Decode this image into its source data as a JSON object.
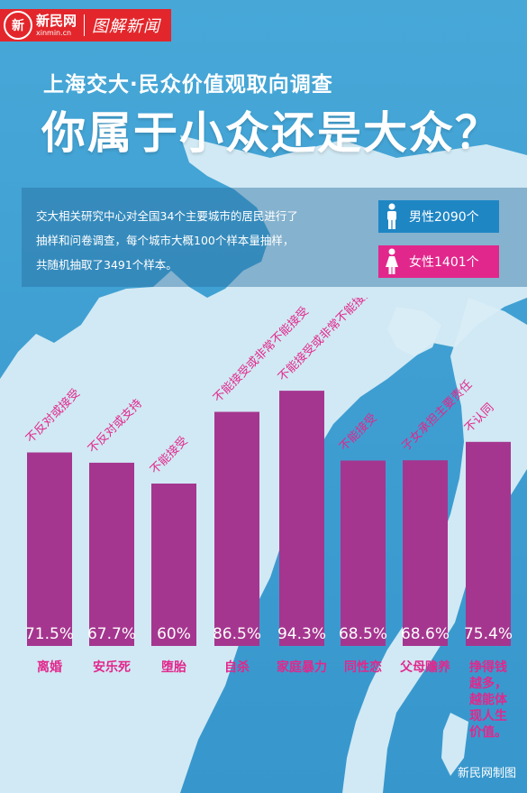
{
  "header": {
    "logo_cn": "新民网",
    "logo_en": "xinmin.cn",
    "logo_caption": "图解新闻",
    "subtitle": "上海交大·民众价值观取向调查",
    "title": "你属于小众还是大众？"
  },
  "info": {
    "lines": [
      "交大相关研究中心对全国34个主要城市的居民进行了",
      "抽样和问卷调查，每个城市大概100个样本量抽样，",
      "共随机抽取了3491个样本。"
    ],
    "male_label": "男性2090个",
    "female_label": "女性1401个",
    "male_icon": "male-person-icon",
    "female_icon": "female-person-icon"
  },
  "colors": {
    "bar": "#a5368f",
    "rotated_label": "#e2278c",
    "category_label": "#e2278c",
    "male_badge": "#1f86c4",
    "female_badge": "#e2278c"
  },
  "chart_data": {
    "type": "bar",
    "categories": [
      "离婚",
      "安乐死",
      "堕胎",
      "自杀",
      "家庭暴力",
      "同性恋",
      "父母赡养",
      "挣得钱越多，越能体现人生价值。"
    ],
    "category_lines": [
      [
        "离婚"
      ],
      [
        "安乐死"
      ],
      [
        "堕胎"
      ],
      [
        "自杀"
      ],
      [
        "家庭暴力"
      ],
      [
        "同性恋"
      ],
      [
        "父母赡养"
      ],
      [
        "挣得钱",
        "越多，",
        "越能体",
        "现人生",
        "价值。"
      ]
    ],
    "values": [
      71.5,
      67.7,
      60,
      86.5,
      94.3,
      68.5,
      68.6,
      75.4
    ],
    "value_labels": [
      "71.5%",
      "67.7%",
      "60%",
      "86.5%",
      "94.3%",
      "68.5%",
      "68.6%",
      "75.4%"
    ],
    "answer_labels": [
      "不反对或接受",
      "不反对或支持",
      "不能接受",
      "不能接受或非常不能接受",
      "不能接受或非常不能接受",
      "不能接受",
      "子女承担主要责任",
      "不认同"
    ],
    "ylim": [
      0,
      100
    ],
    "grid": false,
    "legend": "none"
  },
  "footer": {
    "credit": "新民网制图"
  }
}
